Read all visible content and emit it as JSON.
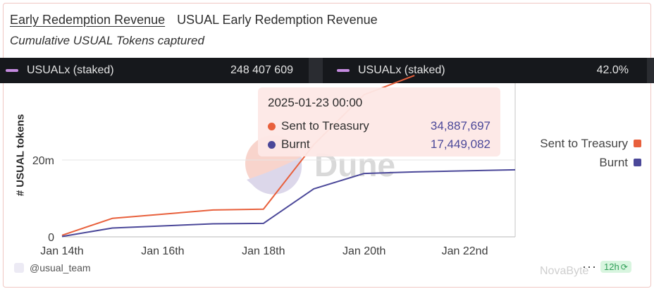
{
  "header": {
    "title": "Early Redemption Revenue",
    "query_name": "USUAL Early Redemption Revenue",
    "subtitle": "Cumulative USUAL Tokens captured"
  },
  "counters": [
    {
      "label": "USUALx (staked)",
      "value": "248 407 609",
      "color": "#c58be0"
    },
    {
      "label": "USUALx (staked)",
      "value": "42.0%",
      "color": "#c58be0"
    }
  ],
  "chart_data": {
    "type": "line",
    "ylabel": "# USUAL tokens",
    "x_ticks": [
      "Jan 14th",
      "Jan 16th",
      "Jan 18th",
      "Jan 20th",
      "Jan 22nd"
    ],
    "y_ticks": [
      {
        "label": "0",
        "value": 0
      },
      {
        "label": "20m",
        "value": 20000000
      }
    ],
    "x_range": [
      "2025-01-14",
      "2025-01-23"
    ],
    "y_range": [
      0,
      40000000
    ],
    "grid": "horizontal",
    "legend_position": "right",
    "series": [
      {
        "name": "Sent to Treasury",
        "color": "#e8603c",
        "points": [
          {
            "x": "2025-01-14",
            "y": 400000
          },
          {
            "x": "2025-01-15",
            "y": 4800000
          },
          {
            "x": "2025-01-17",
            "y": 7000000
          },
          {
            "x": "2025-01-18",
            "y": 7200000
          },
          {
            "x": "2025-01-19",
            "y": 24000000
          },
          {
            "x": "2025-01-20",
            "y": 37000000
          },
          {
            "x": "2025-01-21",
            "y": 42000000
          }
        ]
      },
      {
        "name": "Burnt",
        "color": "#4b4899",
        "points": [
          {
            "x": "2025-01-14",
            "y": 100000
          },
          {
            "x": "2025-01-15",
            "y": 2300000
          },
          {
            "x": "2025-01-17",
            "y": 3400000
          },
          {
            "x": "2025-01-18",
            "y": 3500000
          },
          {
            "x": "2025-01-19",
            "y": 12500000
          },
          {
            "x": "2025-01-20",
            "y": 16500000
          },
          {
            "x": "2025-01-21",
            "y": 16900000
          },
          {
            "x": "2025-01-23",
            "y": 17449082
          }
        ]
      }
    ],
    "tooltip": {
      "date": "2025-01-23 00:00",
      "rows": [
        {
          "name": "Sent to Treasury",
          "value": "34,887,697",
          "color": "#e8603c"
        },
        {
          "name": "Burnt",
          "value": "17,449,082",
          "color": "#4b4899"
        }
      ]
    },
    "watermark": "Dune"
  },
  "legend": [
    {
      "name": "Sent to Treasury",
      "color": "#e8603c"
    },
    {
      "name": "Burnt",
      "color": "#4b4899"
    }
  ],
  "footer": {
    "handle": "@usual_team",
    "more": "···",
    "age": "12h",
    "brand": "NovaByte"
  }
}
